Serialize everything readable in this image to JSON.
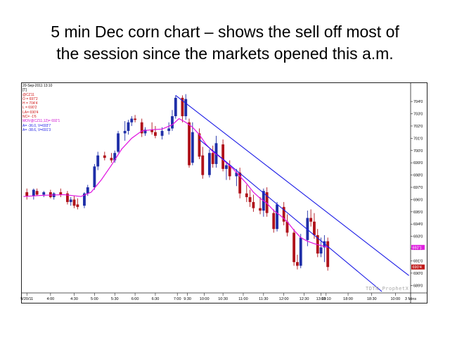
{
  "slide": {
    "title_line1": "5 min Dec corn chart – shows the sell off most of",
    "title_line2": "the session since the markets opened this a.m."
  },
  "info_panel": {
    "datetime": "20-Sep-2011 13:10",
    "bracket": "[T]",
    "symbol": "@CZ11",
    "open": "O = 697'2",
    "high": "H = 704'4",
    "low": "L = 690'2",
    "last": "LA= 690'4",
    "net_change": "NC= -1'6",
    "moving_avg": "MOV@CZ11,12)= 692'1",
    "line1": "A= -36.0, V=693'7",
    "line2": "A= -38.6, V=691'3"
  },
  "watermark": "TDTN ProphetX",
  "colors": {
    "up_candle": "#1f2fa8",
    "down_candle": "#b0121a",
    "moving_average": "#e010e0",
    "trendline": "#1a1ae6",
    "last_price_tag": "#c01818",
    "ma_price_tag": "#e020e0"
  },
  "chart_data": {
    "type": "candlestick",
    "title": "",
    "instrument": "@CZ11",
    "interval": "5 min",
    "ylim": [
      688.5,
      705.5
    ],
    "y_ticks": [
      "704'0",
      "703'0",
      "702'0",
      "701'0",
      "700'0",
      "699'0",
      "698'0",
      "697'0",
      "696'0",
      "695'0",
      "694'0",
      "693'0",
      "692'0",
      "691'0",
      "690'0",
      "689'0"
    ],
    "y_tick_values": [
      704,
      703,
      702,
      701,
      700,
      699,
      698,
      697,
      696,
      695,
      694,
      693,
      692,
      691,
      690,
      689
    ],
    "x_labels": [
      "9/20/11",
      "4:00",
      "4:30",
      "5:00",
      "5:30",
      "6:00",
      "6:30",
      "7:00",
      "9:30",
      "10:00",
      "10:30",
      "11:00",
      "11:30",
      "12:00",
      "12:30",
      "13:00",
      "13:10",
      "18:00",
      "18:30",
      "10:00",
      "3 Mins"
    ],
    "x_label_slots": [
      1,
      8,
      15,
      21,
      27,
      33,
      39,
      45.5,
      48.5,
      53.5,
      59,
      65,
      71,
      77,
      83,
      88,
      89.5,
      96,
      103,
      110,
      114.5
    ],
    "slot_count": 115,
    "candles": [
      {
        "s": 1,
        "o": 696.6,
        "h": 696.9,
        "l": 696.0,
        "c": 696.3
      },
      {
        "s": 3,
        "o": 696.3,
        "h": 696.9,
        "l": 696.0,
        "c": 696.8
      },
      {
        "s": 4,
        "o": 696.7,
        "h": 696.9,
        "l": 696.3,
        "c": 696.4
      },
      {
        "s": 6,
        "o": 696.4,
        "h": 696.7,
        "l": 696.2,
        "c": 696.6
      },
      {
        "s": 8,
        "o": 696.6,
        "h": 696.8,
        "l": 696.1,
        "c": 696.2
      },
      {
        "s": 9,
        "o": 696.2,
        "h": 696.6,
        "l": 696.0,
        "c": 696.5
      },
      {
        "s": 11,
        "o": 696.6,
        "h": 696.9,
        "l": 696.2,
        "c": 696.4
      },
      {
        "s": 13,
        "o": 696.5,
        "h": 696.7,
        "l": 695.6,
        "c": 695.8
      },
      {
        "s": 14,
        "o": 695.8,
        "h": 696.2,
        "l": 695.5,
        "c": 696.0
      },
      {
        "s": 15,
        "o": 696.0,
        "h": 696.3,
        "l": 695.3,
        "c": 695.5
      },
      {
        "s": 16,
        "o": 695.6,
        "h": 696.1,
        "l": 695.2,
        "c": 695.4
      },
      {
        "s": 18,
        "o": 695.5,
        "h": 696.6,
        "l": 695.3,
        "c": 696.5
      },
      {
        "s": 19,
        "o": 696.5,
        "h": 697.2,
        "l": 696.3,
        "c": 697.0
      },
      {
        "s": 21,
        "o": 697.0,
        "h": 698.9,
        "l": 696.8,
        "c": 698.7
      },
      {
        "s": 22,
        "o": 698.7,
        "h": 699.9,
        "l": 698.4,
        "c": 699.6
      },
      {
        "s": 24,
        "o": 699.6,
        "h": 699.9,
        "l": 699.2,
        "c": 699.4
      },
      {
        "s": 26,
        "o": 699.4,
        "h": 699.8,
        "l": 699.0,
        "c": 699.2
      },
      {
        "s": 27,
        "o": 699.2,
        "h": 700.0,
        "l": 699.0,
        "c": 699.8
      },
      {
        "s": 28,
        "o": 699.9,
        "h": 701.6,
        "l": 699.8,
        "c": 701.4
      },
      {
        "s": 30,
        "o": 701.4,
        "h": 702.4,
        "l": 700.8,
        "c": 701.6
      },
      {
        "s": 31,
        "o": 701.6,
        "h": 702.5,
        "l": 701.3,
        "c": 702.3
      },
      {
        "s": 32,
        "o": 702.3,
        "h": 702.8,
        "l": 702.0,
        "c": 702.6
      },
      {
        "s": 33,
        "o": 702.6,
        "h": 702.9,
        "l": 702.3,
        "c": 702.5
      },
      {
        "s": 35,
        "o": 702.3,
        "h": 702.6,
        "l": 701.1,
        "c": 701.4
      },
      {
        "s": 36,
        "o": 701.4,
        "h": 701.9,
        "l": 701.2,
        "c": 701.7
      },
      {
        "s": 38,
        "o": 701.7,
        "h": 702.3,
        "l": 701.3,
        "c": 701.5
      },
      {
        "s": 39,
        "o": 701.5,
        "h": 702.0,
        "l": 701.0,
        "c": 701.2
      },
      {
        "s": 41,
        "o": 701.2,
        "h": 701.9,
        "l": 700.9,
        "c": 701.6
      },
      {
        "s": 43,
        "o": 701.6,
        "h": 702.3,
        "l": 701.3,
        "c": 701.8
      },
      {
        "s": 44,
        "o": 701.8,
        "h": 703.3,
        "l": 701.6,
        "c": 702.8
      },
      {
        "s": 45,
        "o": 702.8,
        "h": 704.5,
        "l": 702.6,
        "c": 704.3
      },
      {
        "s": 47,
        "o": 704.3,
        "h": 704.5,
        "l": 702.3,
        "c": 702.8
      },
      {
        "s": 48,
        "o": 702.8,
        "h": 704.6,
        "l": 702.5,
        "c": 704.2
      },
      {
        "s": 49,
        "o": 702.3,
        "h": 702.6,
        "l": 698.6,
        "c": 698.8
      },
      {
        "s": 50,
        "o": 699.0,
        "h": 702.3,
        "l": 698.8,
        "c": 701.5
      },
      {
        "s": 52,
        "o": 701.4,
        "h": 701.8,
        "l": 699.3,
        "c": 699.5
      },
      {
        "s": 53,
        "o": 699.6,
        "h": 700.3,
        "l": 697.7,
        "c": 698.0
      },
      {
        "s": 55,
        "o": 698.0,
        "h": 700.1,
        "l": 697.8,
        "c": 699.8
      },
      {
        "s": 56,
        "o": 699.8,
        "h": 700.4,
        "l": 698.6,
        "c": 698.9
      },
      {
        "s": 57,
        "o": 698.9,
        "h": 701.2,
        "l": 698.6,
        "c": 700.6
      },
      {
        "s": 59,
        "o": 700.5,
        "h": 700.9,
        "l": 698.3,
        "c": 698.5
      },
      {
        "s": 60,
        "o": 698.5,
        "h": 699.1,
        "l": 697.6,
        "c": 698.8
      },
      {
        "s": 61,
        "o": 698.8,
        "h": 699.2,
        "l": 697.6,
        "c": 697.9
      },
      {
        "s": 63,
        "o": 697.9,
        "h": 698.5,
        "l": 697.1,
        "c": 698.2
      },
      {
        "s": 64,
        "o": 698.2,
        "h": 698.6,
        "l": 696.1,
        "c": 696.5
      },
      {
        "s": 66,
        "o": 696.5,
        "h": 697.2,
        "l": 695.8,
        "c": 696.2
      },
      {
        "s": 67,
        "o": 696.2,
        "h": 696.8,
        "l": 695.4,
        "c": 695.8
      },
      {
        "s": 68,
        "o": 695.8,
        "h": 696.4,
        "l": 695.0,
        "c": 695.3
      },
      {
        "s": 70,
        "o": 695.3,
        "h": 696.2,
        "l": 694.8,
        "c": 695.1
      },
      {
        "s": 71,
        "o": 695.1,
        "h": 696.9,
        "l": 694.6,
        "c": 696.7
      },
      {
        "s": 72,
        "o": 696.6,
        "h": 697.0,
        "l": 694.6,
        "c": 694.9
      },
      {
        "s": 74,
        "o": 694.9,
        "h": 695.2,
        "l": 693.3,
        "c": 693.6
      },
      {
        "s": 75,
        "o": 693.6,
        "h": 695.8,
        "l": 693.4,
        "c": 695.6
      },
      {
        "s": 77,
        "o": 695.4,
        "h": 695.8,
        "l": 693.9,
        "c": 694.2
      },
      {
        "s": 78,
        "o": 694.2,
        "h": 694.8,
        "l": 693.0,
        "c": 693.3
      },
      {
        "s": 80,
        "o": 693.3,
        "h": 693.6,
        "l": 690.6,
        "c": 690.9
      },
      {
        "s": 81,
        "o": 690.9,
        "h": 691.5,
        "l": 690.3,
        "c": 690.6
      },
      {
        "s": 82,
        "o": 690.6,
        "h": 693.2,
        "l": 690.4,
        "c": 692.9
      },
      {
        "s": 84,
        "o": 692.7,
        "h": 695.1,
        "l": 692.2,
        "c": 694.5
      },
      {
        "s": 85,
        "o": 694.5,
        "h": 695.2,
        "l": 693.8,
        "c": 694.2
      },
      {
        "s": 86,
        "o": 694.2,
        "h": 694.9,
        "l": 692.8,
        "c": 693.1
      },
      {
        "s": 87,
        "o": 693.1,
        "h": 693.6,
        "l": 691.3,
        "c": 691.6
      },
      {
        "s": 88,
        "o": 691.6,
        "h": 692.9,
        "l": 691.3,
        "c": 692.1
      },
      {
        "s": 89,
        "o": 692.1,
        "h": 693.1,
        "l": 690.9,
        "c": 692.6
      },
      {
        "s": 90,
        "o": 692.6,
        "h": 692.9,
        "l": 690.2,
        "c": 690.5
      }
    ],
    "moving_average": {
      "name": "MOV@CZ11,12)",
      "points": [
        [
          0,
          696.25
        ],
        [
          6,
          696.35
        ],
        [
          12,
          696.4
        ],
        [
          17,
          696.25
        ],
        [
          20,
          696.6
        ],
        [
          23,
          697.6
        ],
        [
          26,
          698.8
        ],
        [
          29,
          700.1
        ],
        [
          32,
          701.0
        ],
        [
          35,
          701.6
        ],
        [
          38,
          701.7
        ],
        [
          41,
          701.75
        ],
        [
          44,
          702.1
        ],
        [
          46,
          702.6
        ],
        [
          48,
          702.3
        ],
        [
          50,
          701.9
        ],
        [
          52,
          701.3
        ],
        [
          54,
          700.5
        ],
        [
          56,
          699.9
        ],
        [
          58,
          699.5
        ],
        [
          60,
          699.0
        ],
        [
          62,
          698.5
        ],
        [
          64,
          697.9
        ],
        [
          66,
          697.3
        ],
        [
          68,
          696.6
        ],
        [
          70,
          696.1
        ],
        [
          72,
          695.7
        ],
        [
          74,
          695.1
        ],
        [
          76,
          694.7
        ],
        [
          78,
          694.2
        ],
        [
          80,
          693.5
        ],
        [
          82,
          692.9
        ],
        [
          84,
          692.6
        ],
        [
          86,
          692.4
        ],
        [
          88,
          692.25
        ],
        [
          90,
          692.1
        ]
      ]
    },
    "trendlines": [
      {
        "from": [
          45,
          704.5
        ],
        "to": [
          114,
          689.8
        ]
      },
      {
        "from": [
          52,
          700.9
        ],
        "to": [
          106,
          688.5
        ]
      }
    ],
    "price_tags": [
      {
        "label": "692'1",
        "value": 692.1,
        "kind": "ma"
      },
      {
        "label": "690'4",
        "value": 690.5,
        "kind": "last"
      }
    ]
  }
}
